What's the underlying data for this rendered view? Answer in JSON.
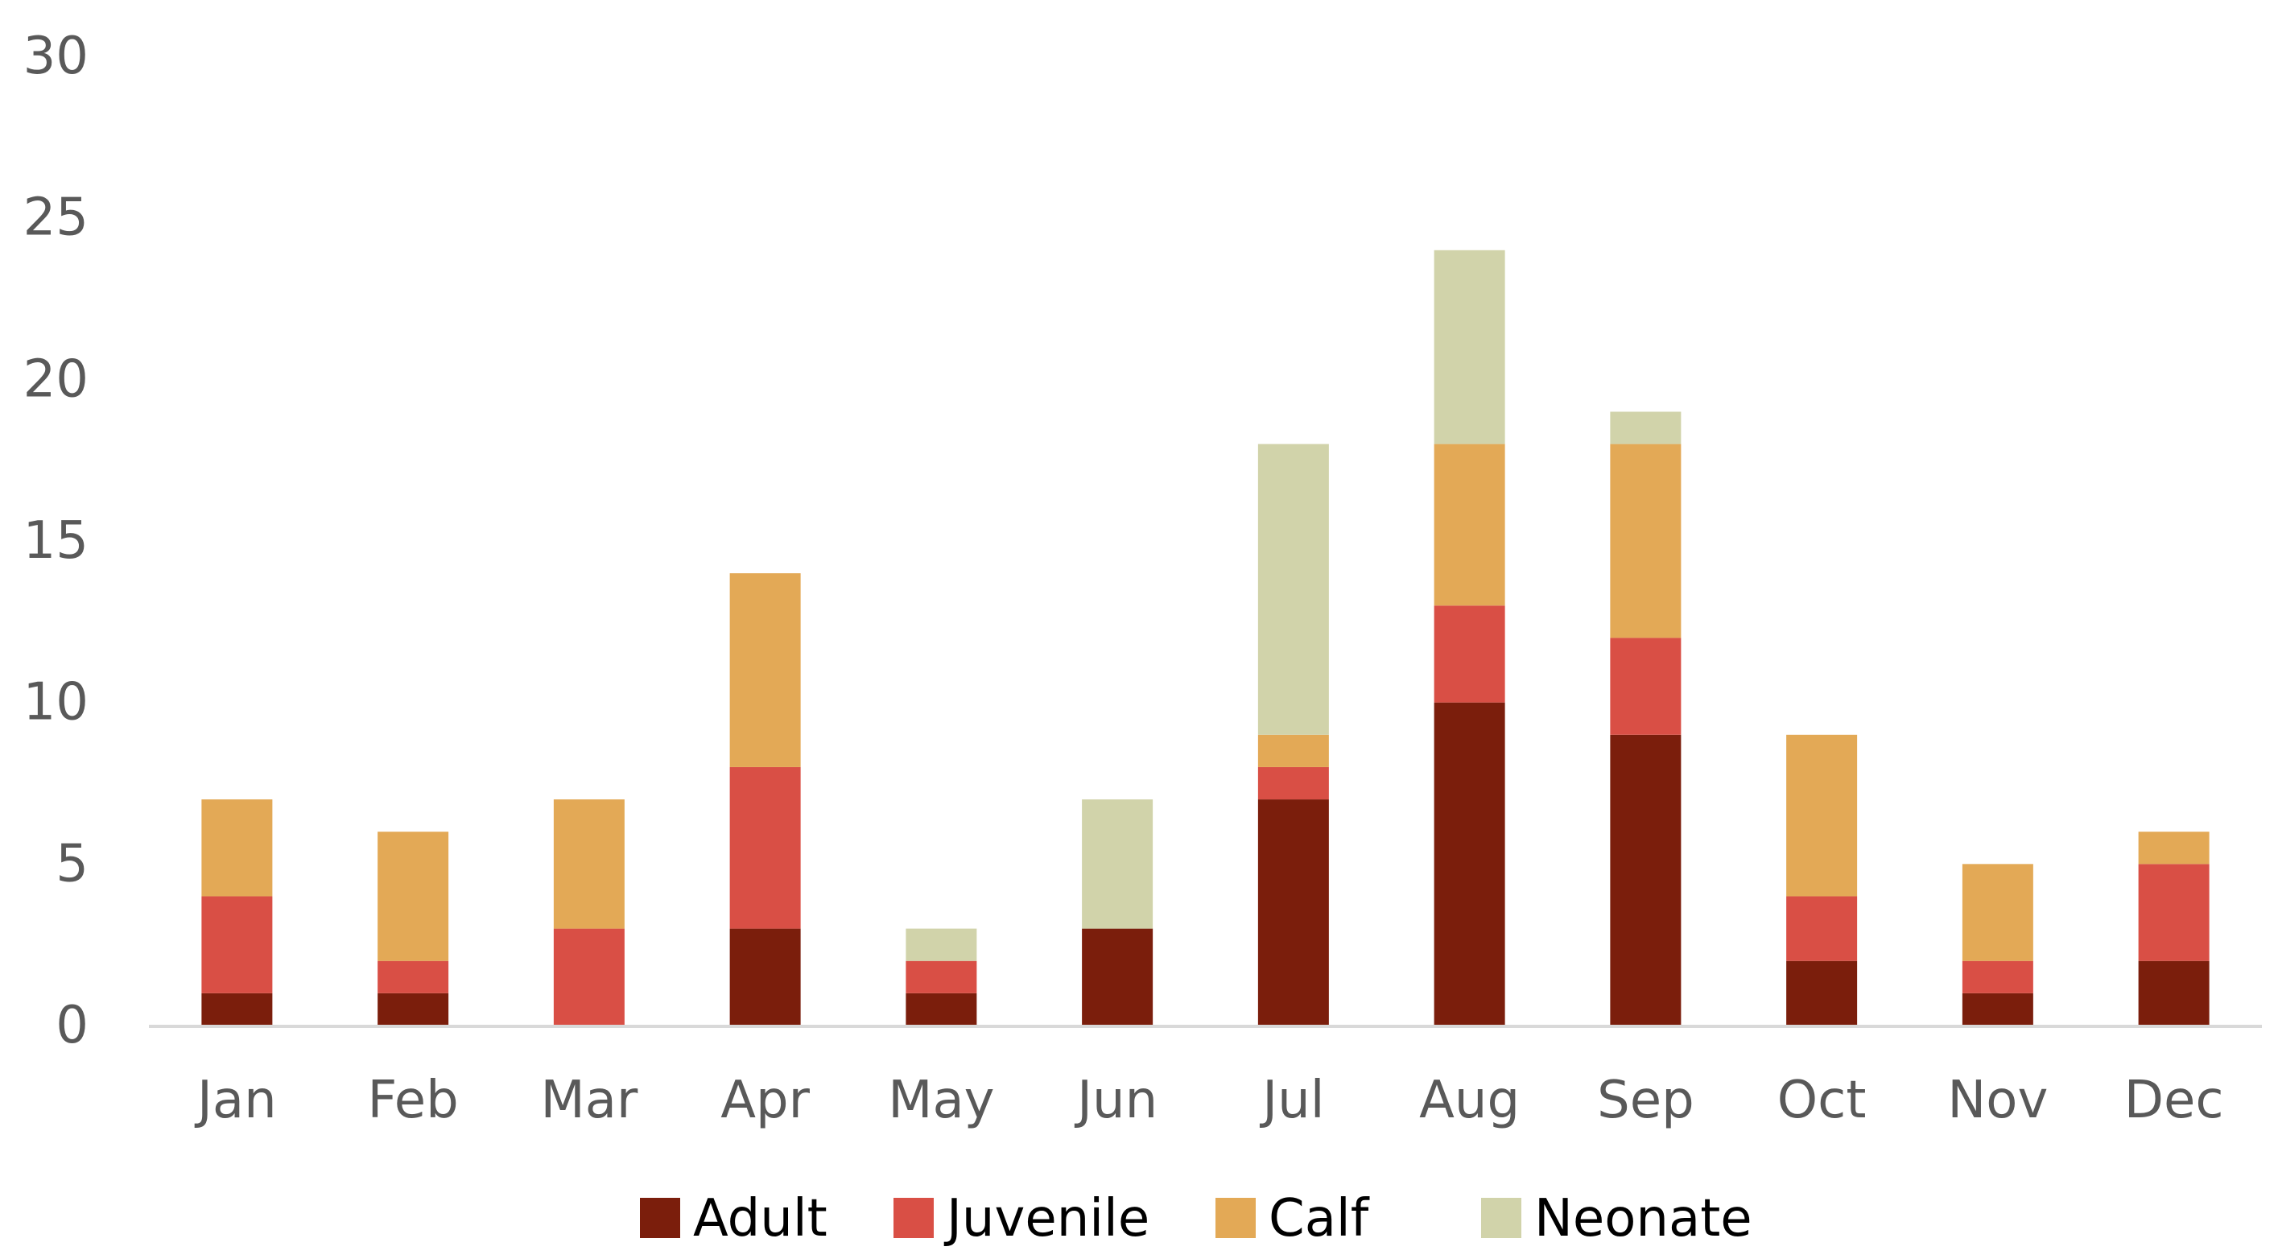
{
  "chart_data": {
    "type": "bar",
    "stacked": true,
    "title": "",
    "xlabel": "",
    "ylabel": "",
    "categories": [
      "Jan",
      "Feb",
      "Mar",
      "Apr",
      "May",
      "Jun",
      "Jul",
      "Aug",
      "Sep",
      "Oct",
      "Nov",
      "Dec"
    ],
    "series": [
      {
        "name": "Adult",
        "color": "#7B1E0C",
        "values": [
          1,
          1,
          0,
          3,
          1,
          3,
          7,
          10,
          9,
          2,
          1,
          2
        ]
      },
      {
        "name": "Juvenile",
        "color": "#D94F45",
        "values": [
          3,
          1,
          3,
          5,
          1,
          0,
          1,
          3,
          3,
          2,
          1,
          3
        ]
      },
      {
        "name": "Calf",
        "color": "#E3A956",
        "values": [
          3,
          4,
          4,
          6,
          0,
          0,
          1,
          5,
          6,
          5,
          3,
          1
        ]
      },
      {
        "name": "Neonate",
        "color": "#D1D3AA",
        "values": [
          0,
          0,
          0,
          0,
          1,
          4,
          9,
          6,
          1,
          0,
          0,
          0
        ]
      }
    ],
    "ylim": [
      0,
      30
    ],
    "yticks": [
      0,
      5,
      10,
      15,
      20,
      25,
      30
    ],
    "grid": false,
    "legend_position": "bottom",
    "axis_color": "#D9D9D9"
  }
}
